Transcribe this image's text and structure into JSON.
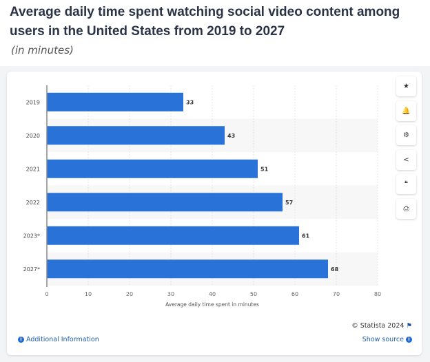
{
  "title_part1": "Average daily time spent watching social video content among users in the United States",
  "title_part2": "from 2019 to 2027",
  "subtitle": "(in minutes)",
  "toolbar": [
    {
      "icon": "star-icon",
      "glyph": "★"
    },
    {
      "icon": "bell-icon",
      "glyph": "🔔"
    },
    {
      "icon": "gear-icon",
      "glyph": "⚙"
    },
    {
      "icon": "share-icon",
      "glyph": "<"
    },
    {
      "icon": "quote-icon",
      "glyph": "❝"
    },
    {
      "icon": "print-icon",
      "glyph": "⎙"
    }
  ],
  "footer": {
    "additional_info": "Additional Information",
    "copyright": "© Statista 2024",
    "show_source": "Show source"
  },
  "chart_data": {
    "type": "bar",
    "orientation": "horizontal",
    "categories": [
      "2019",
      "2020",
      "2021",
      "2022",
      "2023*",
      "2027*"
    ],
    "values": [
      33,
      43,
      51,
      57,
      61,
      68
    ],
    "xlabel": "Average daily time spent in minutes",
    "xlim": [
      0,
      80
    ],
    "xticks": [
      0,
      10,
      20,
      30,
      40,
      50,
      60,
      70,
      80
    ],
    "bar_color": "#2872d8",
    "grid": true
  }
}
